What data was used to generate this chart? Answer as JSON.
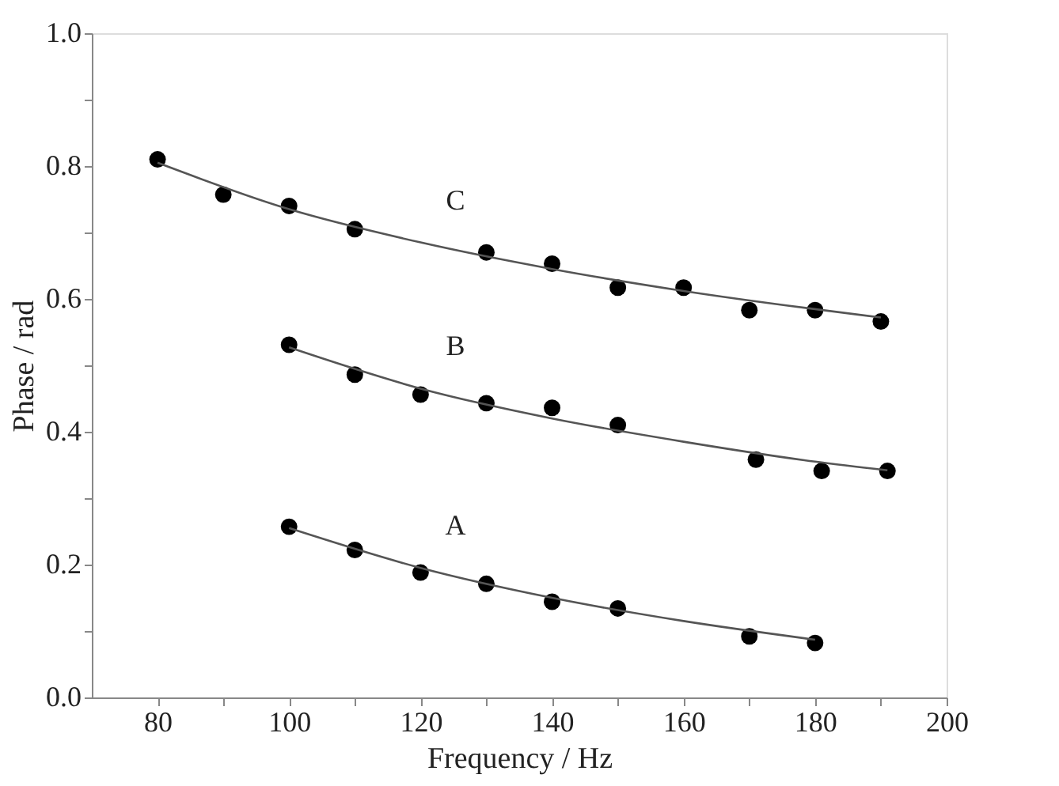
{
  "chart_data": {
    "type": "scatter",
    "xlabel": "Frequency / Hz",
    "ylabel": "Phase / rad",
    "xlim": [
      70,
      200
    ],
    "ylim": [
      0,
      1.0
    ],
    "xticks": [
      80,
      {
        "value": 90,
        "label": null
      },
      100,
      {
        "value": 110,
        "label": null
      },
      120,
      {
        "value": 130,
        "label": null
      },
      140,
      {
        "value": 150,
        "label": null
      },
      160,
      {
        "value": 170,
        "label": null
      },
      180,
      {
        "value": 190,
        "label": null
      },
      200
    ],
    "yticks": [
      {
        "value": 0,
        "label": "0.0"
      },
      {
        "value": 0.1,
        "label": null
      },
      0.2,
      {
        "value": 0.3,
        "label": null
      },
      0.4,
      {
        "value": 0.5,
        "label": null
      },
      0.6,
      {
        "value": 0.7,
        "label": null
      },
      0.8,
      {
        "value": 0.9,
        "label": null
      },
      {
        "value": 1,
        "label": "1.0"
      }
    ],
    "grid": false,
    "marker": "circle",
    "series": [
      {
        "type": "scatter",
        "color": "#000000",
        "x": [
          80,
          90,
          100,
          110,
          130,
          140,
          150,
          160,
          170,
          180,
          190
        ],
        "values": [
          0.81,
          0.757,
          0.74,
          0.705,
          0.67,
          0.653,
          0.617,
          0.617,
          0.583,
          0.583,
          0.566
        ]
      },
      {
        "type": "scatter",
        "color": "#000000",
        "x": [
          100,
          110,
          120,
          130,
          140,
          150,
          171,
          181,
          191
        ],
        "values": [
          0.531,
          0.486,
          0.456,
          0.443,
          0.436,
          0.41,
          0.358,
          0.341,
          0.341
        ]
      },
      {
        "type": "scatter",
        "color": "#000000",
        "x": [
          100,
          110,
          120,
          130,
          140,
          150,
          170,
          180
        ],
        "values": [
          0.257,
          0.222,
          0.188,
          0.171,
          0.144,
          0.134,
          0.092,
          0.082
        ]
      },
      {
        "type": "line",
        "name": "C",
        "color": "#555555",
        "line_style": "solid",
        "marker": "none",
        "x": [
          80,
          100,
          120,
          140,
          160,
          190
        ],
        "values": [
          0.805,
          0.735,
          0.685,
          0.645,
          0.612,
          0.572
        ]
      },
      {
        "type": "line",
        "name": "B",
        "color": "#555555",
        "line_style": "solid",
        "marker": "none",
        "x": [
          100,
          120,
          140,
          160,
          180,
          191
        ],
        "values": [
          0.527,
          0.465,
          0.42,
          0.385,
          0.355,
          0.342
        ]
      },
      {
        "type": "line",
        "name": "A",
        "color": "#555555",
        "line_style": "solid",
        "marker": "none",
        "x": [
          100,
          120,
          140,
          160,
          180
        ],
        "values": [
          0.255,
          0.195,
          0.15,
          0.115,
          0.087
        ]
      }
    ]
  }
}
